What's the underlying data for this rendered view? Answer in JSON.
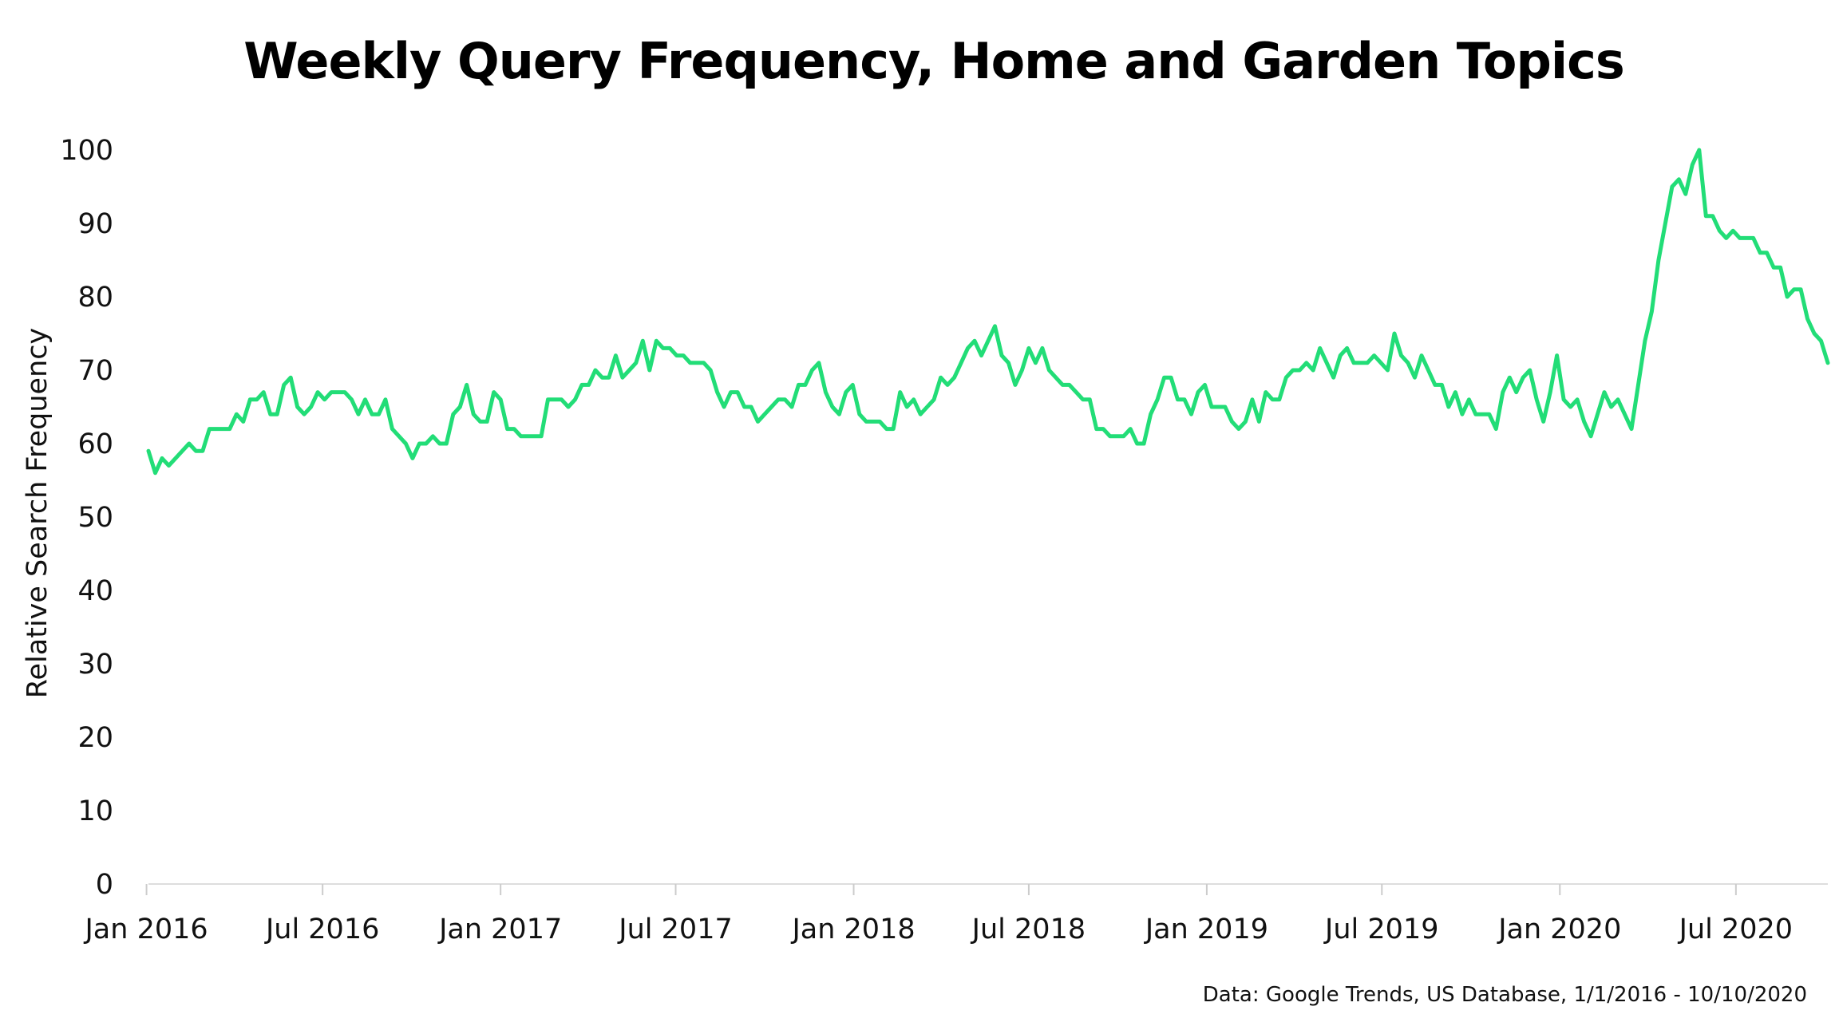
{
  "page": {
    "title": "Weekly Query Frequency, Home and Garden Topics",
    "source_note": "Data: Google Trends, US Database, 1/1/2016 - 10/10/2020"
  },
  "chart_data": {
    "type": "line",
    "title": "Weekly Query Frequency, Home and Garden Topics",
    "xlabel": "",
    "ylabel": "Relative Search Frequency",
    "ylim": [
      0,
      100
    ],
    "yticks": [
      "0",
      "10",
      "20",
      "30",
      "40",
      "50",
      "60",
      "70",
      "80",
      "90",
      "100"
    ],
    "xticks": [
      "Jan 2016",
      "Jul 2016",
      "Jan 2017",
      "Jul 2017",
      "Jan 2018",
      "Jul 2018",
      "Jan 2019",
      "Jul 2019",
      "Jan 2020",
      "Jul 2020"
    ],
    "xtick_dates": [
      "2016-01-01",
      "2016-07-01",
      "2017-01-01",
      "2017-07-01",
      "2018-01-01",
      "2018-07-01",
      "2019-01-01",
      "2019-07-01",
      "2020-01-01",
      "2020-07-01"
    ],
    "x_range": [
      "2016-01-03",
      "2020-10-04"
    ],
    "grid": false,
    "line_color": "#22dd77",
    "series": [
      {
        "start": "2016-01-03",
        "interval_days": 7,
        "values": [
          59,
          56,
          58,
          57,
          58,
          59,
          60,
          59,
          59,
          62,
          62,
          62,
          62,
          64,
          63,
          66,
          66,
          67,
          64,
          64,
          68,
          69,
          65,
          64,
          65,
          67,
          66,
          67,
          67,
          67,
          66,
          64,
          66,
          64,
          64,
          66,
          62,
          61,
          60,
          58,
          60,
          60,
          61,
          60,
          60,
          64,
          65,
          68,
          64,
          63,
          63,
          67,
          66,
          62,
          62,
          61,
          61,
          61,
          61,
          66,
          66,
          66,
          65,
          66,
          68,
          68,
          70,
          69,
          69,
          72,
          69,
          70,
          71,
          74,
          70,
          74,
          73,
          73,
          72,
          72,
          71,
          71,
          71,
          70,
          67,
          65,
          67,
          67,
          65,
          65,
          63,
          64,
          65,
          66,
          66,
          65,
          68,
          68,
          70,
          71,
          67,
          65,
          64,
          67,
          68,
          64,
          63,
          63,
          63,
          62,
          62,
          67,
          65,
          66,
          64,
          65,
          66,
          69,
          68,
          69,
          71,
          73,
          74,
          72,
          74,
          76,
          72,
          71,
          68,
          70,
          73,
          71,
          73,
          70,
          69,
          68,
          68,
          67,
          66,
          66,
          62,
          62,
          61,
          61,
          61,
          62,
          60,
          60,
          64,
          66,
          69,
          69,
          66,
          66,
          64,
          67,
          68,
          65,
          65,
          65,
          63,
          62,
          63,
          66,
          63,
          67,
          66,
          66,
          69,
          70,
          70,
          71,
          70,
          73,
          71,
          69,
          72,
          73,
          71,
          71,
          71,
          72,
          71,
          70,
          75,
          72,
          71,
          69,
          72,
          70,
          68,
          68,
          65,
          67,
          64,
          66,
          64,
          64,
          64,
          62,
          67,
          69,
          67,
          69,
          70,
          66,
          63,
          67,
          72,
          66,
          65,
          66,
          63,
          61,
          64,
          67,
          65,
          66,
          64,
          62,
          68,
          74,
          78,
          85,
          90,
          95,
          96,
          94,
          98,
          100,
          91,
          91,
          89,
          88,
          89,
          88,
          88,
          88,
          86,
          86,
          84,
          84,
          80,
          81,
          81,
          77,
          75,
          74,
          71
        ]
      }
    ]
  }
}
